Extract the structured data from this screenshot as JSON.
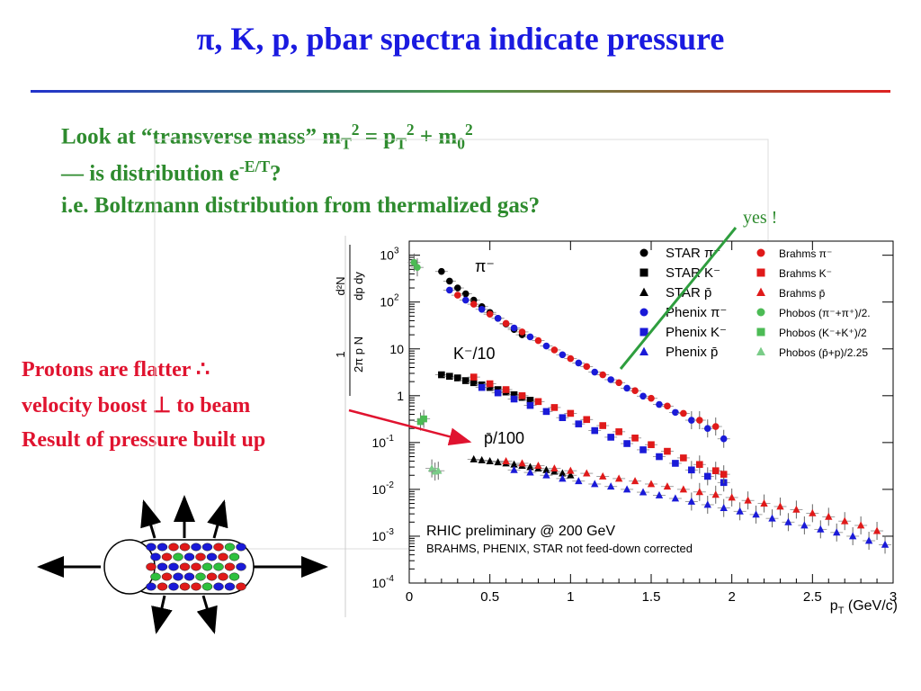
{
  "slide": {
    "title": "π, K, p, pbar spectra indicate pressure",
    "question_lines": {
      "l1_a": "Look at “transverse mass” m",
      "l1_sub1": "T",
      "l1_sup1": "2",
      "l1_b": " =  p",
      "l1_sub2": "T",
      "l1_sup2": "2",
      "l1_c": " + m",
      "l1_sub3": "0",
      "l1_sup3": "2",
      "l2_a": "— is distribution e",
      "l2_sup": "-E/T",
      "l2_b": "?",
      "l3": "i.e. Boltzmann distribution from thermalized gas?"
    },
    "yes_annotation": "yes !",
    "proton_note": [
      "Protons are flatter ∴",
      "velocity boost ⊥ to beam",
      "Result of pressure built up"
    ]
  },
  "chart_data": {
    "type": "scatter",
    "y_scale": "log",
    "xlim": [
      0,
      3
    ],
    "ylim": [
      0.0001,
      2000
    ],
    "x_ticks": [
      "0",
      "0.5",
      "1",
      "1.5",
      "2",
      "2.5",
      "3"
    ],
    "y_ticks": [
      {
        "base": "10",
        "exp": "3"
      },
      {
        "base": "10",
        "exp": "2"
      },
      {
        "base": "10",
        "exp": ""
      },
      {
        "base": "1",
        "exp": ""
      },
      {
        "base": "10",
        "exp": "-1"
      },
      {
        "base": "10",
        "exp": "-2"
      },
      {
        "base": "10",
        "exp": "-3"
      },
      {
        "base": "10",
        "exp": "-4"
      }
    ],
    "xlabel": {
      "main": "p",
      "sub": "T",
      "rest": " (GeV/c)"
    },
    "ylabel": {
      "top": "d²N",
      "top_den": "dp dy",
      "bottom_num": "1",
      "bottom_den": "2π p N"
    },
    "curve_labels": {
      "pi": "π⁻",
      "k": "K⁻/10",
      "p": "p̄/100"
    },
    "annotations": {
      "rhic": "RHIC preliminary @ 200 GeV",
      "feed": "BRAHMS, PHENIX, STAR not feed-down corrected"
    },
    "legend_placement": "top-right",
    "legend": [
      {
        "name": "STAR π⁻",
        "color": "#000000",
        "marker": "circle"
      },
      {
        "name": "STAR K⁻",
        "color": "#000000",
        "marker": "square"
      },
      {
        "name": "STAR p̄",
        "color": "#000000",
        "marker": "triangle"
      },
      {
        "name": "Phenix π⁻",
        "color": "#1a1ad8",
        "marker": "circle"
      },
      {
        "name": "Phenix K⁻",
        "color": "#1a1ad8",
        "marker": "square"
      },
      {
        "name": "Phenix p̄",
        "color": "#1a1ad8",
        "marker": "triangle"
      },
      {
        "name": "Brahms π⁻",
        "color": "#e01a1a",
        "marker": "circle"
      },
      {
        "name": "Brahms K⁻",
        "color": "#e01a1a",
        "marker": "square"
      },
      {
        "name": "Brahms p̄",
        "color": "#e01a1a",
        "marker": "triangle"
      },
      {
        "name": "Phobos (π⁻+π⁺)/2.",
        "color": "#4cbb55",
        "marker": "circle"
      },
      {
        "name": "Phobos (K⁻+K⁺)/2",
        "color": "#4cbb55",
        "marker": "square"
      },
      {
        "name": "Phobos (p̄+p)/2.25",
        "color": "#7acc88",
        "marker": "triangle"
      }
    ],
    "series": [
      {
        "name": "STAR π⁻",
        "color": "#000000",
        "marker": "circle",
        "x": [
          0.2,
          0.25,
          0.3,
          0.35,
          0.4,
          0.45,
          0.5,
          0.55,
          0.6,
          0.65,
          0.7
        ],
        "y": [
          450,
          280,
          200,
          150,
          110,
          80,
          60,
          45,
          34,
          26,
          20
        ]
      },
      {
        "name": "Phenix π⁻",
        "color": "#1a1ad8",
        "marker": "circle",
        "x": [
          0.25,
          0.35,
          0.45,
          0.55,
          0.65,
          0.75,
          0.85,
          0.95,
          1.05,
          1.15,
          1.25,
          1.35,
          1.45,
          1.55,
          1.65,
          1.75,
          1.85,
          1.95
        ],
        "y": [
          180,
          110,
          70,
          45,
          28,
          18,
          11.5,
          7.5,
          5,
          3.2,
          2.2,
          1.45,
          0.98,
          0.65,
          0.44,
          0.3,
          0.2,
          0.12
        ]
      },
      {
        "name": "Brahms π⁻",
        "color": "#e01a1a",
        "marker": "circle",
        "x": [
          0.3,
          0.4,
          0.5,
          0.6,
          0.7,
          0.8,
          0.9,
          1.0,
          1.1,
          1.2,
          1.3,
          1.4,
          1.5,
          1.6,
          1.7,
          1.8,
          1.9
        ],
        "y": [
          140,
          90,
          55,
          35,
          23,
          15,
          9.5,
          6.2,
          4.2,
          2.8,
          1.9,
          1.28,
          0.88,
          0.6,
          0.42,
          0.3,
          0.22
        ]
      },
      {
        "name": "Phobos (π⁻+π⁺)/2.",
        "color": "#4cbb55",
        "marker": "circle",
        "x": [
          0.03,
          0.05
        ],
        "y": [
          700,
          550
        ]
      },
      {
        "name": "STAR K⁻",
        "color": "#000000",
        "marker": "square",
        "x": [
          0.2,
          0.25,
          0.3,
          0.35,
          0.4,
          0.45,
          0.5,
          0.55,
          0.6,
          0.65,
          0.7,
          0.75
        ],
        "y": [
          2.8,
          2.6,
          2.4,
          2.1,
          1.9,
          1.7,
          1.5,
          1.35,
          1.2,
          1.05,
          0.92,
          0.8
        ]
      },
      {
        "name": "Phenix K⁻",
        "color": "#1a1ad8",
        "marker": "square",
        "x": [
          0.45,
          0.55,
          0.65,
          0.75,
          0.85,
          0.95,
          1.05,
          1.15,
          1.25,
          1.35,
          1.45,
          1.55,
          1.65,
          1.75,
          1.85,
          1.95
        ],
        "y": [
          1.5,
          1.15,
          0.85,
          0.62,
          0.46,
          0.34,
          0.25,
          0.18,
          0.13,
          0.095,
          0.07,
          0.05,
          0.036,
          0.026,
          0.019,
          0.014
        ]
      },
      {
        "name": "Brahms K⁻",
        "color": "#e01a1a",
        "marker": "square",
        "x": [
          0.4,
          0.5,
          0.6,
          0.7,
          0.8,
          0.9,
          1.0,
          1.1,
          1.2,
          1.3,
          1.4,
          1.5,
          1.6,
          1.7,
          1.8,
          1.9,
          1.95
        ],
        "y": [
          2.5,
          1.8,
          1.35,
          1.0,
          0.75,
          0.56,
          0.42,
          0.31,
          0.23,
          0.17,
          0.125,
          0.09,
          0.065,
          0.047,
          0.034,
          0.025,
          0.021
        ]
      },
      {
        "name": "Phobos (K⁻+K⁺)/2",
        "color": "#4cbb55",
        "marker": "square",
        "x": [
          0.07,
          0.09
        ],
        "y": [
          0.28,
          0.32
        ]
      },
      {
        "name": "STAR p̄",
        "color": "#000000",
        "marker": "triangle",
        "x": [
          0.4,
          0.45,
          0.5,
          0.55,
          0.6,
          0.65,
          0.7,
          0.75,
          0.8,
          0.85,
          0.9,
          0.95,
          1.0
        ],
        "y": [
          0.044,
          0.042,
          0.04,
          0.038,
          0.036,
          0.034,
          0.032,
          0.03,
          0.028,
          0.026,
          0.024,
          0.022,
          0.02
        ]
      },
      {
        "name": "Phenix p̄",
        "color": "#1a1ad8",
        "marker": "triangle",
        "x": [
          0.65,
          0.75,
          0.85,
          0.95,
          1.05,
          1.15,
          1.25,
          1.35,
          1.45,
          1.55,
          1.65,
          1.75,
          1.85,
          1.95,
          2.05,
          2.15,
          2.25,
          2.35,
          2.45,
          2.55,
          2.65,
          2.75,
          2.85,
          2.95
        ],
        "y": [
          0.026,
          0.023,
          0.02,
          0.017,
          0.015,
          0.013,
          0.0115,
          0.01,
          0.0087,
          0.0075,
          0.0064,
          0.0055,
          0.0047,
          0.004,
          0.0034,
          0.0029,
          0.0024,
          0.002,
          0.0017,
          0.0014,
          0.0012,
          0.001,
          0.0008,
          0.00066
        ]
      },
      {
        "name": "Brahms p̄",
        "color": "#e01a1a",
        "marker": "triangle",
        "x": [
          0.6,
          0.7,
          0.8,
          0.9,
          1.0,
          1.1,
          1.2,
          1.3,
          1.4,
          1.5,
          1.6,
          1.7,
          1.8,
          1.9,
          2.0,
          2.1,
          2.2,
          2.3,
          2.4,
          2.5,
          2.6,
          2.7,
          2.8,
          2.9
        ],
        "y": [
          0.04,
          0.036,
          0.032,
          0.028,
          0.025,
          0.022,
          0.019,
          0.017,
          0.015,
          0.013,
          0.0115,
          0.01,
          0.0088,
          0.0077,
          0.0067,
          0.0058,
          0.005,
          0.0043,
          0.0037,
          0.0031,
          0.0026,
          0.0021,
          0.0017,
          0.0013
        ]
      },
      {
        "name": "Phobos (p̄+p)/2.25",
        "color": "#7acc88",
        "marker": "triangle",
        "x": [
          0.14,
          0.16,
          0.18
        ],
        "y": [
          0.028,
          0.024,
          0.025
        ]
      }
    ]
  }
}
